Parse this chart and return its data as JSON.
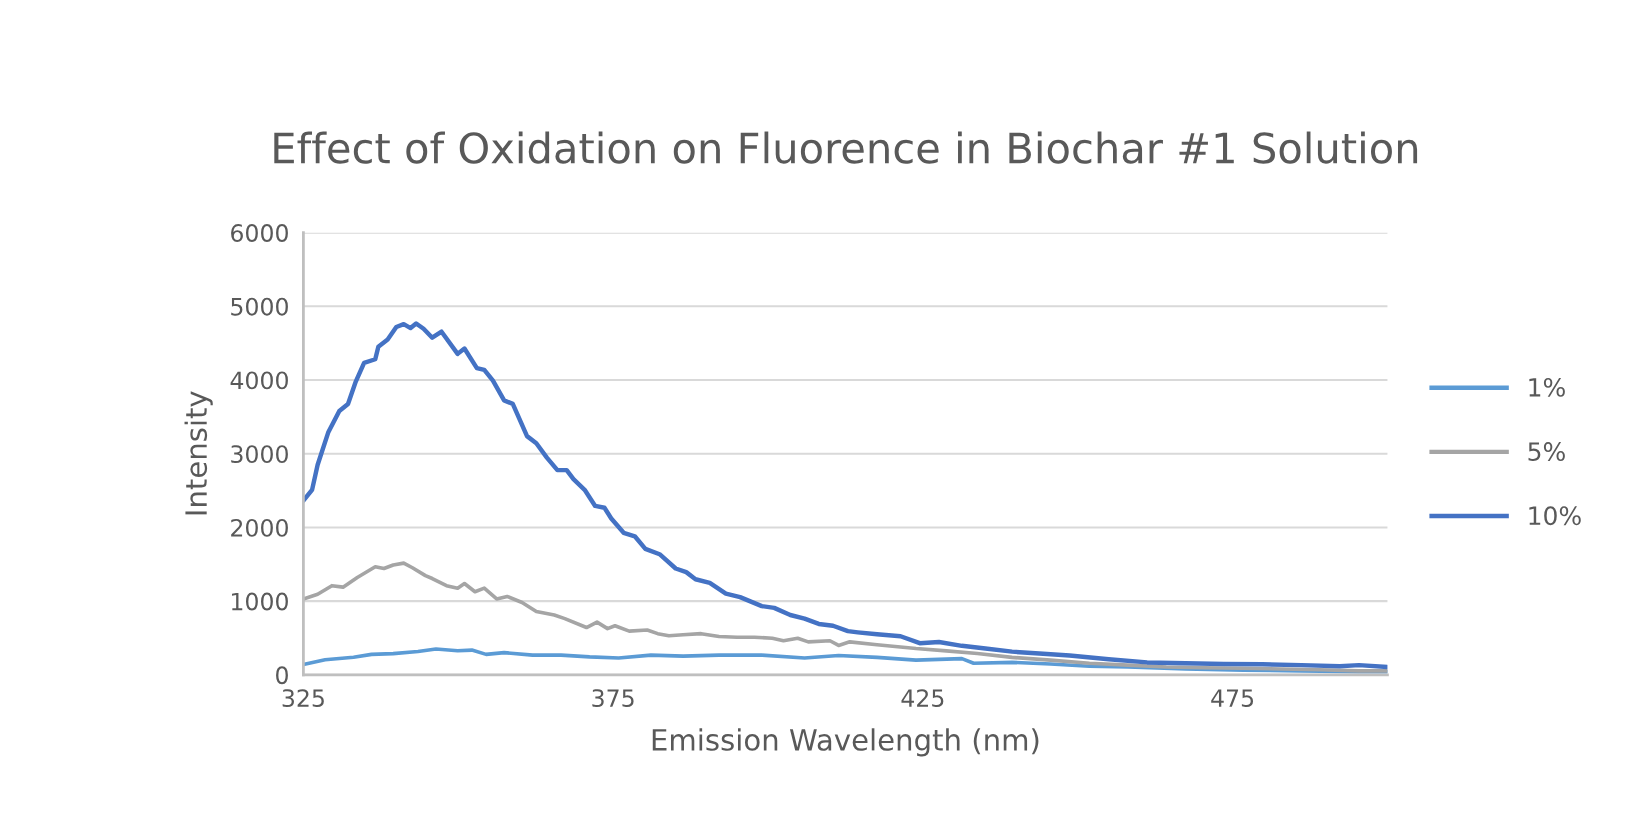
{
  "chart_data": {
    "type": "line",
    "title": "Effect of Oxidation on Fluorence in Biochar #1 Solution",
    "xlabel": "Emission Wavelength (nm)",
    "ylabel": "Intensity",
    "xlim": [
      325,
      500
    ],
    "xticks": [
      325,
      375,
      425,
      475
    ],
    "ylim": [
      0,
      6000
    ],
    "yticks": [
      0,
      1000,
      2000,
      3000,
      4000,
      5000,
      6000
    ],
    "grid": "y",
    "legend": "right",
    "marker": "none",
    "line_style": "solid",
    "series": [
      {
        "name": "1%",
        "color": "#5b9bd5",
        "x": [
          325,
          328.5,
          333.1,
          336,
          339.5,
          343.5,
          346.4,
          349.9,
          352.2,
          354.5,
          357.4,
          362,
          366.6,
          371.2,
          375.9,
          381.1,
          386.3,
          392.1,
          399,
          405.9,
          411.4,
          417.6,
          423.9,
          431.3,
          433.2,
          439.4,
          445.6,
          451.9,
          458.1,
          467.4,
          476.7,
          486.1,
          495.4,
          500
        ],
        "values": [
          142,
          205,
          239,
          278,
          288,
          317,
          351,
          327,
          336,
          278,
          302,
          268,
          268,
          244,
          229,
          268,
          254,
          268,
          268,
          229,
          263,
          237,
          200,
          221,
          158,
          169,
          148,
          117,
          106,
          80,
          64,
          54,
          43,
          43
        ]
      },
      {
        "name": "5%",
        "color": "#a5a5a5",
        "x": [
          325,
          327.3,
          329.6,
          331.4,
          333.7,
          336.6,
          338,
          339.5,
          341.2,
          342.6,
          344.7,
          345.8,
          348.1,
          349.9,
          351,
          352.7,
          354.2,
          356.2,
          357.9,
          360.3,
          362.6,
          365.5,
          367.2,
          370.7,
          372.4,
          374.1,
          375.3,
          377.6,
          380.5,
          382.2,
          384,
          386.3,
          389.2,
          392.1,
          395,
          397.8,
          400.7,
          402.5,
          404.8,
          406.5,
          410,
          411.4,
          413.2,
          417.6,
          423.9,
          428.8,
          433.8,
          439.4,
          445.6,
          451.9,
          458.1,
          464.3,
          470.5,
          476.7,
          482.9,
          489.1,
          495.4,
          500
        ],
        "values": [
          1030,
          1093,
          1210,
          1190,
          1321,
          1467,
          1443,
          1491,
          1516,
          1453,
          1346,
          1307,
          1210,
          1176,
          1239,
          1127,
          1176,
          1030,
          1064,
          982,
          860,
          812,
          763,
          642,
          715,
          627,
          666,
          593,
          608,
          559,
          530,
          545,
          559,
          520,
          511,
          511,
          496,
          463,
          496,
          448,
          463,
          399,
          448,
          409,
          357,
          326,
          289,
          237,
          200,
          158,
          132,
          106,
          96,
          90,
          80,
          70,
          54,
          54
        ]
      },
      {
        "name": "10%",
        "color": "#4472c4",
        "x": [
          325,
          326.4,
          327.3,
          329,
          330.8,
          332.2,
          333.4,
          334.8,
          336.6,
          337.1,
          338.6,
          340,
          341.2,
          342.3,
          343.2,
          344.4,
          345.8,
          347.3,
          349.9,
          351,
          353,
          354.2,
          355.6,
          357.4,
          358.8,
          361.1,
          362.6,
          364.3,
          366,
          367.5,
          368.6,
          370.4,
          372.1,
          373.6,
          374.7,
          376.7,
          378.5,
          380.2,
          382.5,
          385.1,
          386.8,
          388.3,
          390.6,
          393.2,
          395.5,
          399,
          401,
          403.6,
          405.9,
          408.2,
          410.5,
          412.9,
          414.5,
          417.6,
          421.4,
          424.5,
          427.6,
          431.3,
          435.1,
          439.4,
          443.8,
          448.7,
          455,
          461.2,
          467.4,
          473.6,
          479.8,
          486.1,
          492.3,
          495.4,
          500
        ],
        "values": [
          2365,
          2510,
          2850,
          3287,
          3580,
          3676,
          3967,
          4234,
          4282,
          4452,
          4549,
          4719,
          4758,
          4705,
          4768,
          4695,
          4574,
          4656,
          4355,
          4428,
          4161,
          4137,
          3991,
          3724,
          3676,
          3239,
          3142,
          2948,
          2778,
          2778,
          2656,
          2511,
          2292,
          2268,
          2122,
          1928,
          1880,
          1710,
          1637,
          1443,
          1394,
          1297,
          1249,
          1103,
          1055,
          933,
          909,
          812,
          763,
          691,
          666,
          593,
          577,
          550,
          524,
          430,
          446,
          394,
          357,
          315,
          289,
          263,
          211,
          169,
          158,
          148,
          143,
          132,
          117,
          132,
          106
        ]
      }
    ]
  }
}
